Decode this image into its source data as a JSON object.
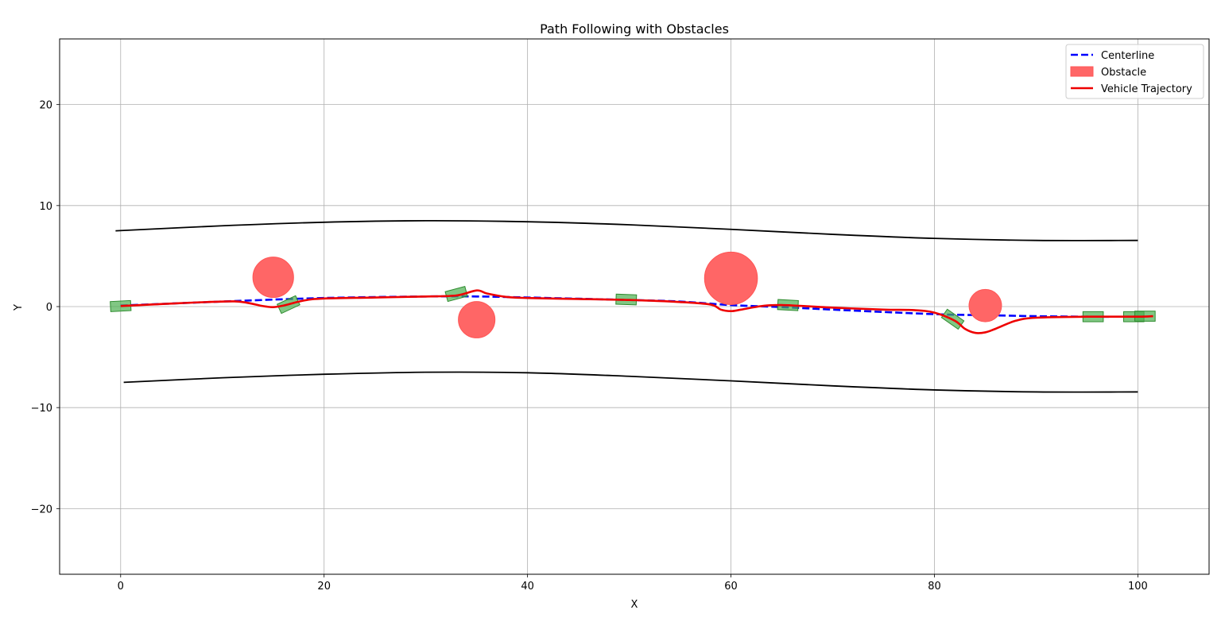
{
  "chart_data": {
    "type": "line",
    "title": "Path Following with Obstacles",
    "xlabel": "X",
    "ylabel": "Y",
    "xlim": [
      -6,
      107
    ],
    "ylim": [
      -26.5,
      26.5
    ],
    "xticks": [
      0,
      20,
      40,
      60,
      80,
      100
    ],
    "yticks": [
      -20,
      -10,
      0,
      10,
      20
    ],
    "xtick_labels": [
      "0",
      "20",
      "40",
      "60",
      "80",
      "100"
    ],
    "ytick_labels": [
      "−20",
      "−10",
      "0",
      "10",
      "20"
    ],
    "grid": true,
    "legend_position": "top-right",
    "legend": [
      {
        "label": "Centerline",
        "kind": "dashed-line",
        "color": "#0000ff"
      },
      {
        "label": "Obstacle",
        "kind": "patch",
        "color": "#ff6666"
      },
      {
        "label": "Vehicle Trajectory",
        "kind": "line",
        "color": "#ee0000"
      }
    ],
    "centerline": {
      "color": "#0000ff",
      "points": [
        [
          0,
          0.1
        ],
        [
          10,
          0.5
        ],
        [
          20,
          0.85
        ],
        [
          30,
          1.0
        ],
        [
          35,
          1.0
        ],
        [
          40,
          0.9
        ],
        [
          50,
          0.65
        ],
        [
          55,
          0.5
        ],
        [
          60,
          0.15
        ],
        [
          65,
          -0.05
        ],
        [
          70,
          -0.3
        ],
        [
          80,
          -0.75
        ],
        [
          85,
          -0.85
        ],
        [
          90,
          -0.95
        ],
        [
          95,
          -1.0
        ],
        [
          100,
          -1.0
        ]
      ]
    },
    "trajectory": {
      "color": "#ee0000",
      "points": [
        [
          0,
          0.05
        ],
        [
          5,
          0.3
        ],
        [
          10,
          0.5
        ],
        [
          12,
          0.45
        ],
        [
          14,
          0.05
        ],
        [
          15,
          -0.05
        ],
        [
          16,
          0.1
        ],
        [
          18,
          0.6
        ],
        [
          20,
          0.8
        ],
        [
          25,
          0.9
        ],
        [
          30,
          1.0
        ],
        [
          33,
          1.1
        ],
        [
          35,
          1.6
        ],
        [
          36,
          1.3
        ],
        [
          38,
          0.95
        ],
        [
          40,
          0.85
        ],
        [
          45,
          0.75
        ],
        [
          50,
          0.65
        ],
        [
          55,
          0.45
        ],
        [
          58,
          0.2
        ],
        [
          59,
          -0.3
        ],
        [
          60,
          -0.45
        ],
        [
          61,
          -0.3
        ],
        [
          63,
          0.05
        ],
        [
          65,
          0.15
        ],
        [
          70,
          -0.1
        ],
        [
          75,
          -0.3
        ],
        [
          78,
          -0.35
        ],
        [
          80,
          -0.6
        ],
        [
          82,
          -1.4
        ],
        [
          83,
          -2.2
        ],
        [
          84,
          -2.6
        ],
        [
          85,
          -2.55
        ],
        [
          86,
          -2.2
        ],
        [
          88,
          -1.4
        ],
        [
          90,
          -1.1
        ],
        [
          95,
          -1.0
        ],
        [
          100,
          -1.0
        ],
        [
          101.5,
          -0.95
        ]
      ]
    },
    "boundaries": {
      "color": "#000000",
      "upper": [
        [
          -0.5,
          7.5
        ],
        [
          10,
          8.0
        ],
        [
          20,
          8.35
        ],
        [
          30,
          8.5
        ],
        [
          40,
          8.4
        ],
        [
          50,
          8.1
        ],
        [
          60,
          7.65
        ],
        [
          70,
          7.15
        ],
        [
          80,
          6.75
        ],
        [
          90,
          6.55
        ],
        [
          100,
          6.55
        ]
      ],
      "lower": [
        [
          0.3,
          -7.5
        ],
        [
          10,
          -7.05
        ],
        [
          20,
          -6.7
        ],
        [
          30,
          -6.5
        ],
        [
          40,
          -6.55
        ],
        [
          50,
          -6.9
        ],
        [
          60,
          -7.35
        ],
        [
          70,
          -7.85
        ],
        [
          80,
          -8.25
        ],
        [
          90,
          -8.45
        ],
        [
          100,
          -8.45
        ]
      ]
    },
    "obstacles": {
      "color": "#ff6666",
      "items": [
        {
          "x": 15,
          "y": 2.9,
          "r": 2.0
        },
        {
          "x": 35,
          "y": -1.3,
          "r": 1.8
        },
        {
          "x": 60,
          "y": 2.8,
          "r": 2.6
        },
        {
          "x": 85,
          "y": 0.1,
          "r": 1.6
        }
      ]
    },
    "vehicles": {
      "color": "#4caf50",
      "length": 2.0,
      "width": 1.0,
      "items": [
        {
          "x": 0,
          "y": 0.05,
          "heading_deg": 3
        },
        {
          "x": 16.5,
          "y": 0.2,
          "heading_deg": 25
        },
        {
          "x": 33,
          "y": 1.25,
          "heading_deg": 15
        },
        {
          "x": 49.7,
          "y": 0.7,
          "heading_deg": -2
        },
        {
          "x": 65.6,
          "y": 0.15,
          "heading_deg": -3
        },
        {
          "x": 81.8,
          "y": -1.25,
          "heading_deg": -35
        },
        {
          "x": 95.6,
          "y": -1.0,
          "heading_deg": 0
        },
        {
          "x": 99.6,
          "y": -1.0,
          "heading_deg": 0
        },
        {
          "x": 100.7,
          "y": -0.95,
          "heading_deg": 0
        }
      ]
    }
  }
}
